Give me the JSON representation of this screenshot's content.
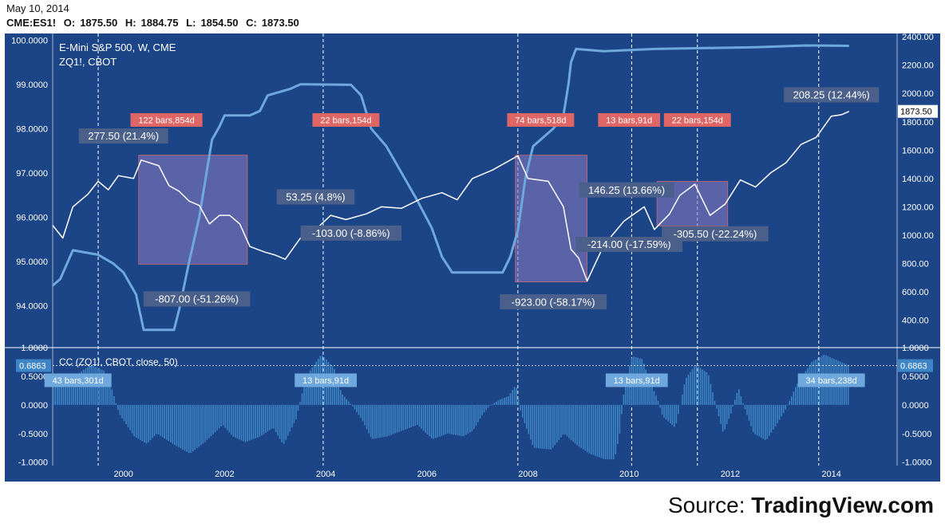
{
  "header": {
    "date": "May 10, 2014",
    "symbol": "CME:ES1!",
    "open_label": "O:",
    "open": "1875.50",
    "high_label": "H:",
    "high": "1884.75",
    "low_label": "L:",
    "low": "1854.50",
    "close_label": "C:",
    "close": "1873.50"
  },
  "source": {
    "prefix": "Source: ",
    "brand": "TradingView.com"
  },
  "colors": {
    "background": "#1c4587",
    "zq_line": "#6fa8dc",
    "es_line": "#ffffff",
    "cc_bars": "#3d85c6",
    "drawdown_box": "#8e7cc3",
    "bars_label_bg": "#e06666",
    "annotation_bg": "#4a5f8a"
  },
  "chart_data": [
    {
      "type": "line",
      "title": "E-Mini S&P 500, W, CME",
      "subtitle": "ZQ1!, CBOT",
      "x_ticks": [
        "2000",
        "2002",
        "2004",
        "2006",
        "2008",
        "2010",
        "2012",
        "2014"
      ],
      "xlim": [
        1998.6,
        2015.3
      ],
      "left_axis": {
        "ticks": [
          "100.0000",
          "99.0000",
          "98.0000",
          "97.0000",
          "96.0000",
          "95.0000",
          "94.0000"
        ],
        "ylim": [
          93.05,
          100.15
        ]
      },
      "right_axis": {
        "ticks": [
          "2400.00",
          "2200.00",
          "2000.00",
          "1800.00",
          "1600.00",
          "1400.00",
          "1200.00",
          "1000.00",
          "800.00",
          "600.00",
          "400.00"
        ],
        "ylim": [
          207,
          2423
        ],
        "last_value": "1873.50"
      },
      "series": [
        {
          "name": "E-Mini S&P 500, W, CME",
          "axis": "right",
          "points": [
            [
              1998.6,
              1070
            ],
            [
              1998.8,
              980
            ],
            [
              1999.0,
              1200
            ],
            [
              1999.3,
              1290
            ],
            [
              1999.5,
              1380
            ],
            [
              1999.7,
              1320
            ],
            [
              1999.9,
              1420
            ],
            [
              2000.2,
              1400
            ],
            [
              2000.35,
              1530
            ],
            [
              2000.7,
              1490
            ],
            [
              2000.9,
              1350
            ],
            [
              2001.1,
              1310
            ],
            [
              2001.3,
              1240
            ],
            [
              2001.5,
              1210
            ],
            [
              2001.7,
              1080
            ],
            [
              2001.9,
              1140
            ],
            [
              2002.1,
              1140
            ],
            [
              2002.3,
              1080
            ],
            [
              2002.5,
              920
            ],
            [
              2002.8,
              880
            ],
            [
              2003.0,
              860
            ],
            [
              2003.2,
              830
            ],
            [
              2003.5,
              980
            ],
            [
              2003.8,
              1040
            ],
            [
              2004.1,
              1140
            ],
            [
              2004.4,
              1110
            ],
            [
              2004.8,
              1150
            ],
            [
              2005.1,
              1200
            ],
            [
              2005.5,
              1190
            ],
            [
              2005.9,
              1260
            ],
            [
              2006.3,
              1300
            ],
            [
              2006.6,
              1250
            ],
            [
              2006.9,
              1400
            ],
            [
              2007.3,
              1460
            ],
            [
              2007.8,
              1560
            ],
            [
              2008.0,
              1400
            ],
            [
              2008.4,
              1380
            ],
            [
              2008.7,
              1200
            ],
            [
              2008.85,
              900
            ],
            [
              2009.0,
              840
            ],
            [
              2009.17,
              677
            ],
            [
              2009.5,
              930
            ],
            [
              2009.9,
              1100
            ],
            [
              2010.3,
              1200
            ],
            [
              2010.5,
              1040
            ],
            [
              2010.8,
              1150
            ],
            [
              2011.0,
              1280
            ],
            [
              2011.3,
              1360
            ],
            [
              2011.6,
              1140
            ],
            [
              2011.9,
              1220
            ],
            [
              2012.2,
              1390
            ],
            [
              2012.5,
              1340
            ],
            [
              2012.8,
              1440
            ],
            [
              2013.1,
              1510
            ],
            [
              2013.4,
              1640
            ],
            [
              2013.7,
              1690
            ],
            [
              2014.0,
              1840
            ],
            [
              2014.2,
              1850
            ],
            [
              2014.35,
              1873.5
            ]
          ]
        },
        {
          "name": "ZQ1!, CBOT",
          "axis": "left",
          "points": [
            [
              1998.6,
              94.45
            ],
            [
              1998.75,
              94.6
            ],
            [
              1999.0,
              95.25
            ],
            [
              1999.5,
              95.15
            ],
            [
              1999.8,
              94.95
            ],
            [
              2000.0,
              94.75
            ],
            [
              2000.25,
              94.25
            ],
            [
              2000.4,
              93.45
            ],
            [
              2001.0,
              93.45
            ],
            [
              2001.1,
              93.9
            ],
            [
              2001.3,
              95.0
            ],
            [
              2001.5,
              96.0
            ],
            [
              2001.75,
              97.75
            ],
            [
              2001.9,
              98.05
            ],
            [
              2002.0,
              98.3
            ],
            [
              2002.5,
              98.3
            ],
            [
              2002.7,
              98.4
            ],
            [
              2002.85,
              98.75
            ],
            [
              2003.0,
              98.8
            ],
            [
              2003.3,
              98.9
            ],
            [
              2003.5,
              99.0
            ],
            [
              2003.6,
              99.0
            ],
            [
              2004.5,
              98.99
            ],
            [
              2004.7,
              98.75
            ],
            [
              2004.9,
              98.0
            ],
            [
              2005.2,
              97.6
            ],
            [
              2005.5,
              97.0
            ],
            [
              2005.8,
              96.4
            ],
            [
              2006.1,
              95.75
            ],
            [
              2006.3,
              95.1
            ],
            [
              2006.5,
              94.75
            ],
            [
              2007.5,
              94.75
            ],
            [
              2007.65,
              95.1
            ],
            [
              2007.8,
              95.7
            ],
            [
              2007.95,
              96.9
            ],
            [
              2008.1,
              97.6
            ],
            [
              2008.3,
              97.8
            ],
            [
              2008.5,
              98.0
            ],
            [
              2008.7,
              98.3
            ],
            [
              2008.8,
              99.0
            ],
            [
              2008.85,
              99.5
            ],
            [
              2008.95,
              99.8
            ],
            [
              2009.5,
              99.75
            ],
            [
              2010.5,
              99.8
            ],
            [
              2011.5,
              99.82
            ],
            [
              2012.5,
              99.84
            ],
            [
              2013.5,
              99.88
            ],
            [
              2014.35,
              99.87
            ]
          ]
        }
      ],
      "annotations": [
        {
          "text": "277.50 (21.4%)",
          "x": 2000.0,
          "y": 1700
        },
        {
          "text": "-807.00 (-51.26%)",
          "x": 2001.45,
          "y": 550
        },
        {
          "text": "53.25 (4.8%)",
          "x": 2003.8,
          "y": 1270
        },
        {
          "text": "-103.00 (-8.86%)",
          "x": 2004.5,
          "y": 1015
        },
        {
          "text": "-923.00 (-58.17%)",
          "x": 2008.5,
          "y": 530
        },
        {
          "text": "146.25 (13.66%)",
          "x": 2009.95,
          "y": 1320
        },
        {
          "text": "-214.00 (-17.59%)",
          "x": 2010.0,
          "y": 935
        },
        {
          "text": "-305.50 (-22.24%)",
          "x": 2011.7,
          "y": 1010
        },
        {
          "text": "208.25 (12.44%)",
          "x": 2014.0,
          "y": 1990
        }
      ],
      "bars_labels": [
        {
          "text": "122 bars,854d",
          "x": 2000.85,
          "y": 1813
        },
        {
          "text": "22 bars,154d",
          "x": 2004.4,
          "y": 1813
        },
        {
          "text": "74 bars,518d",
          "x": 2008.25,
          "y": 1813
        },
        {
          "text": "13 bars,91d",
          "x": 2010.0,
          "y": 1813
        },
        {
          "text": "22 bars,154d",
          "x": 2011.35,
          "y": 1813
        }
      ]
    },
    {
      "type": "bar",
      "title": "CC (ZQ1!, CBOT, close, 50)",
      "ylim": [
        -1.06,
        1.0
      ],
      "y_ticks": [
        "1.0000",
        "0.5000",
        "0.0000",
        "-0.5000",
        "-1.0000"
      ],
      "last_value": "0.6863",
      "series": [
        {
          "name": "CC",
          "points": [
            [
              1998.6,
              0.45
            ],
            [
              1998.9,
              0.3
            ],
            [
              1999.1,
              0.55
            ],
            [
              1999.35,
              0.7
            ],
            [
              1999.6,
              0.6
            ],
            [
              1999.75,
              0.3
            ],
            [
              1999.9,
              -0.15
            ],
            [
              2000.2,
              -0.55
            ],
            [
              2000.45,
              -0.68
            ],
            [
              2000.65,
              -0.5
            ],
            [
              2001.0,
              -0.7
            ],
            [
              2001.3,
              -0.85
            ],
            [
              2001.6,
              -0.65
            ],
            [
              2001.95,
              -0.35
            ],
            [
              2002.15,
              -0.55
            ],
            [
              2002.4,
              -0.65
            ],
            [
              2002.7,
              -0.55
            ],
            [
              2002.95,
              -0.4
            ],
            [
              2003.15,
              -0.7
            ],
            [
              2003.4,
              -0.25
            ],
            [
              2003.6,
              0.5
            ],
            [
              2003.9,
              0.88
            ],
            [
              2004.15,
              0.65
            ],
            [
              2004.3,
              0.2
            ],
            [
              2004.5,
              0.0
            ],
            [
              2004.7,
              -0.25
            ],
            [
              2004.9,
              -0.6
            ],
            [
              2005.2,
              -0.55
            ],
            [
              2005.5,
              -0.45
            ],
            [
              2005.8,
              -0.35
            ],
            [
              2006.1,
              -0.6
            ],
            [
              2006.4,
              -0.5
            ],
            [
              2006.7,
              -0.55
            ],
            [
              2006.9,
              -0.45
            ],
            [
              2007.1,
              -0.15
            ],
            [
              2007.25,
              0.0
            ],
            [
              2007.45,
              0.1
            ],
            [
              2007.6,
              0.15
            ],
            [
              2007.75,
              0.35
            ],
            [
              2007.85,
              -0.15
            ],
            [
              2008.1,
              -0.75
            ],
            [
              2008.45,
              -0.78
            ],
            [
              2008.7,
              -0.5
            ],
            [
              2008.95,
              -0.7
            ],
            [
              2009.2,
              -0.85
            ],
            [
              2009.5,
              -0.95
            ],
            [
              2009.7,
              -0.95
            ],
            [
              2009.8,
              -0.5
            ],
            [
              2009.9,
              0.35
            ],
            [
              2010.05,
              0.85
            ],
            [
              2010.25,
              0.8
            ],
            [
              2010.4,
              0.4
            ],
            [
              2010.55,
              0.1
            ],
            [
              2010.65,
              -0.2
            ],
            [
              2010.9,
              -0.4
            ],
            [
              2011.0,
              0.0
            ],
            [
              2011.1,
              0.45
            ],
            [
              2011.3,
              0.7
            ],
            [
              2011.55,
              0.55
            ],
            [
              2011.7,
              0.0
            ],
            [
              2011.85,
              -0.5
            ],
            [
              2012.0,
              -0.15
            ],
            [
              2012.15,
              0.3
            ],
            [
              2012.25,
              0.0
            ],
            [
              2012.45,
              -0.5
            ],
            [
              2012.7,
              -0.62
            ],
            [
              2012.9,
              -0.35
            ],
            [
              2013.1,
              -0.05
            ],
            [
              2013.3,
              0.35
            ],
            [
              2013.6,
              0.75
            ],
            [
              2013.85,
              0.88
            ],
            [
              2014.1,
              0.78
            ],
            [
              2014.35,
              0.6863
            ]
          ]
        }
      ],
      "bars_labels": [
        {
          "text": "43 bars,301d",
          "x": 1999.1,
          "y": 0.43
        },
        {
          "text": "13 bars,91d",
          "x": 2004.0,
          "y": 0.43
        },
        {
          "text": "13 bars,91d",
          "x": 2010.15,
          "y": 0.43
        },
        {
          "text": "34 bars,238d",
          "x": 2014.0,
          "y": 0.43
        }
      ]
    }
  ]
}
